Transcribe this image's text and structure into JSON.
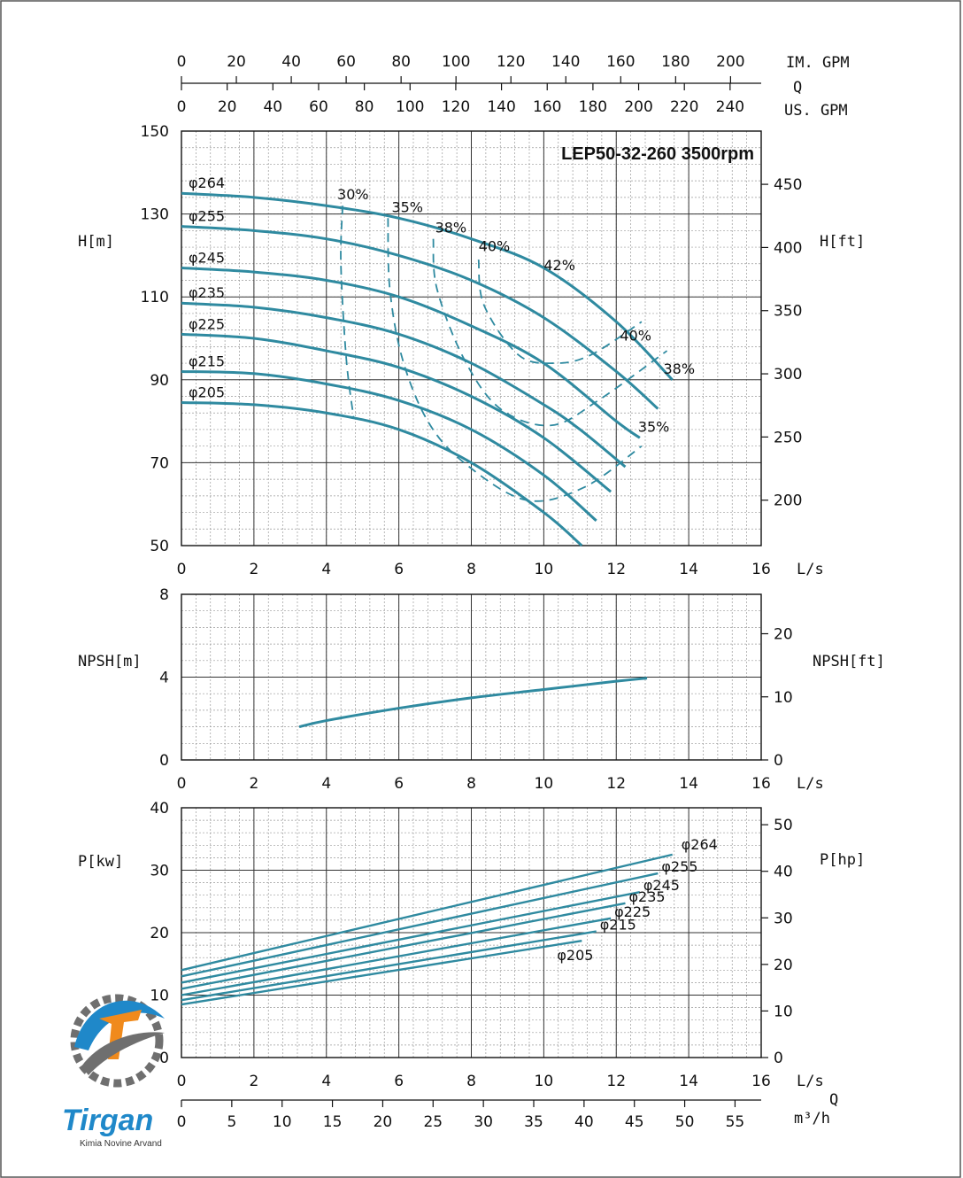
{
  "chart_data": [
    {
      "type": "line",
      "title": "LEP50-32-260 3500rpm",
      "xlabel": "L/s",
      "ylabel": "H[m]",
      "ylabel_right": "H[ft]",
      "xlim": [
        0,
        16
      ],
      "ylim": [
        50,
        150
      ],
      "xticks": [
        "0",
        "2",
        "4",
        "6",
        "8",
        "10",
        "12",
        "14",
        "16"
      ],
      "yticks": [
        "50",
        "70",
        "90",
        "110",
        "130",
        "150"
      ],
      "yticks_right": [
        "200",
        "250",
        "300",
        "350",
        "400",
        "450"
      ],
      "top_axis": {
        "label": "Q",
        "im_gpm_label": "IM. GPM",
        "us_gpm_label": "US. GPM",
        "im_gpm_ticks": [
          "0",
          "20",
          "40",
          "60",
          "80",
          "100",
          "120",
          "140",
          "160",
          "180",
          "200"
        ],
        "us_gpm_ticks": [
          "0",
          "20",
          "40",
          "60",
          "80",
          "100",
          "120",
          "140",
          "160",
          "180",
          "200",
          "220",
          "240"
        ]
      },
      "series": [
        {
          "name": "φ264",
          "x": [
            0,
            2,
            4,
            6,
            8,
            10,
            12,
            13.55
          ],
          "y": [
            135,
            134,
            132,
            129,
            124,
            117,
            104,
            90
          ]
        },
        {
          "name": "φ255",
          "x": [
            0,
            2,
            4,
            6,
            8,
            10,
            12,
            13.15
          ],
          "y": [
            127,
            126,
            124,
            120,
            114,
            105,
            92,
            83
          ]
        },
        {
          "name": "φ245",
          "x": [
            0,
            2,
            4,
            6,
            8,
            10,
            12,
            12.65
          ],
          "y": [
            117,
            116,
            114,
            110,
            103,
            94,
            80,
            76
          ]
        },
        {
          "name": "φ235",
          "x": [
            0,
            2,
            4,
            6,
            8,
            10,
            11,
            12.25
          ],
          "y": [
            108.5,
            107.5,
            105,
            101,
            94,
            84,
            78,
            69
          ]
        },
        {
          "name": "φ225",
          "x": [
            0,
            2,
            4,
            6,
            8,
            10,
            11.85
          ],
          "y": [
            101,
            100,
            97,
            93,
            86,
            76,
            63
          ]
        },
        {
          "name": "φ215",
          "x": [
            0,
            2,
            4,
            6,
            8,
            10,
            11.45
          ],
          "y": [
            92,
            91.5,
            89,
            85,
            78,
            67,
            56
          ]
        },
        {
          "name": "φ205",
          "x": [
            0,
            2,
            4,
            6,
            8,
            10,
            11.05
          ],
          "y": [
            84.5,
            84,
            82,
            78,
            70,
            58,
            50
          ]
        }
      ],
      "efficiency_curves": [
        {
          "label": "30%",
          "x": [
            4.45,
            4.4,
            4.55,
            4.75
          ],
          "y": [
            132,
            118,
            95,
            81
          ]
        },
        {
          "label": "35%",
          "x": [
            5.7,
            5.75,
            6.1,
            6.8,
            7.8,
            9.5,
            11.1,
            12.7
          ],
          "y": [
            129,
            112,
            95,
            80,
            70,
            61,
            64,
            74
          ]
        },
        {
          "label": "38%",
          "x": [
            6.95,
            7.05,
            7.8,
            8.8,
            10.2,
            11.5,
            13.4
          ],
          "y": [
            124,
            112,
            95,
            83,
            79,
            85,
            97
          ]
        },
        {
          "label": "40%",
          "x": [
            8.2,
            8.35,
            9.3,
            10.3,
            11.3,
            12.7
          ],
          "y": [
            119,
            108,
            96,
            94,
            96,
            104
          ]
        },
        {
          "label": "42%",
          "x": [],
          "y": []
        }
      ],
      "efficiency_labels": [
        "30%",
        "35%",
        "38%",
        "40%",
        "42%",
        "40%",
        "38%",
        "35%"
      ]
    },
    {
      "type": "line",
      "xlabel": "L/s",
      "ylabel": "NPSH[m]",
      "ylabel_right": "NPSH[ft]",
      "xlim": [
        0,
        16
      ],
      "ylim": [
        0,
        8
      ],
      "xticks": [
        "0",
        "2",
        "4",
        "6",
        "8",
        "10",
        "12",
        "14",
        "16"
      ],
      "yticks": [
        "0",
        "4",
        "8"
      ],
      "yticks_right": [
        "0",
        "10",
        "20"
      ],
      "series": [
        {
          "x": [
            3.25,
            4,
            6,
            8,
            10,
            12,
            12.85
          ],
          "y": [
            1.6,
            1.9,
            2.5,
            3.0,
            3.4,
            3.8,
            3.95
          ]
        }
      ]
    },
    {
      "type": "line",
      "xlabel": "L/s",
      "ylabel": "P[kw]",
      "ylabel_right": "P[hp]",
      "xlim": [
        0,
        16
      ],
      "ylim": [
        0,
        40
      ],
      "xticks": [
        "0",
        "2",
        "4",
        "6",
        "8",
        "10",
        "12",
        "14",
        "16"
      ],
      "yticks": [
        "0",
        "10",
        "20",
        "30",
        "40"
      ],
      "yticks_right": [
        "0",
        "10",
        "20",
        "30",
        "40",
        "50"
      ],
      "bottom_axis": {
        "label": "Q",
        "unit": "m³/h",
        "ticks": [
          "0",
          "5",
          "10",
          "15",
          "20",
          "25",
          "30",
          "35",
          "40",
          "45",
          "50",
          "55"
        ]
      },
      "series": [
        {
          "name": "φ264",
          "x": [
            0,
            13.55
          ],
          "y": [
            14.0,
            32.5
          ]
        },
        {
          "name": "φ255",
          "x": [
            0,
            13.15
          ],
          "y": [
            13.0,
            29.5
          ]
        },
        {
          "name": "φ245",
          "x": [
            0,
            12.65
          ],
          "y": [
            12.0,
            26.5
          ]
        },
        {
          "name": "φ235",
          "x": [
            0,
            12.25
          ],
          "y": [
            11.0,
            24.7
          ]
        },
        {
          "name": "φ225",
          "x": [
            0,
            11.85
          ],
          "y": [
            10.0,
            22.3
          ]
        },
        {
          "name": "φ215",
          "x": [
            0,
            11.45
          ],
          "y": [
            9.2,
            20.2
          ]
        },
        {
          "name": "φ205",
          "x": [
            0,
            11.05
          ],
          "y": [
            8.5,
            18.7
          ]
        }
      ]
    }
  ],
  "logo": {
    "name": "Tirgan",
    "tagline": "Kimia Novine Arvand",
    "colors": {
      "blue": "#1f88c9",
      "orange": "#f08a1c",
      "gray": "#6f6f6f"
    }
  }
}
